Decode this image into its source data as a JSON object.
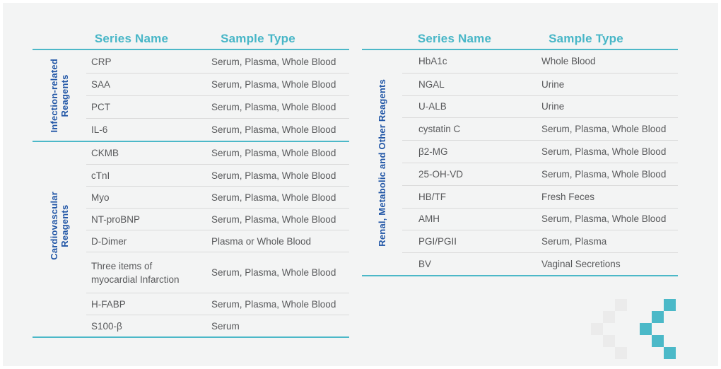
{
  "colors": {
    "accent_teal": "#47b6c7",
    "rule_teal": "#4cb8c8",
    "category_blue": "#2156a6",
    "body_text": "#58595b",
    "divider_gray": "#dadada",
    "panel_background": "#f3f4f4",
    "decor_gray": "#ebebeb",
    "decor_teal": "#4bb9c8"
  },
  "decoration": {
    "gray_chevron": "pixel-chevron-left-gray",
    "teal_chevron": "pixel-chevron-left-teal"
  },
  "tables": [
    {
      "headers": {
        "series": "Series Name",
        "sample": "Sample Type"
      },
      "sections": [
        {
          "category": "Infection-related\nReagents",
          "rows": [
            {
              "series": "CRP",
              "sample": "Serum, Plasma, Whole Blood"
            },
            {
              "series": "SAA",
              "sample": "Serum, Plasma, Whole Blood"
            },
            {
              "series": "PCT",
              "sample": "Serum, Plasma, Whole Blood"
            },
            {
              "series": "IL-6",
              "sample": "Serum, Plasma, Whole Blood"
            }
          ]
        },
        {
          "category": "Cardiovascular\nReagents",
          "rows": [
            {
              "series": "CKMB",
              "sample": "Serum, Plasma, Whole Blood"
            },
            {
              "series": "cTnI",
              "sample": "Serum, Plasma, Whole Blood"
            },
            {
              "series": "Myo",
              "sample": "Serum, Plasma, Whole Blood"
            },
            {
              "series": "NT-proBNP",
              "sample": "Serum, Plasma, Whole Blood"
            },
            {
              "series": "D-Dimer",
              "sample": "Plasma or Whole Blood"
            },
            {
              "series": "Three items of\nmyocardial Infarction",
              "sample": "Serum, Plasma, Whole Blood"
            },
            {
              "series": "H-FABP",
              "sample": "Serum, Plasma, Whole Blood"
            },
            {
              "series": "S100-β",
              "sample": "Serum"
            }
          ]
        }
      ]
    },
    {
      "headers": {
        "series": "Series Name",
        "sample": "Sample Type"
      },
      "sections": [
        {
          "category": "Renal, Metabolic and Other Reagents",
          "rows": [
            {
              "series": "HbA1c",
              "sample": "Whole Blood"
            },
            {
              "series": "NGAL",
              "sample": "Urine"
            },
            {
              "series": "U-ALB",
              "sample": "Urine"
            },
            {
              "series": "cystatin C",
              "sample": "Serum, Plasma, Whole Blood"
            },
            {
              "series": "β2-MG",
              "sample": "Serum, Plasma, Whole Blood"
            },
            {
              "series": "25-OH-VD",
              "sample": "Serum, Plasma, Whole Blood"
            },
            {
              "series": "HB/TF",
              "sample": "Fresh Feces"
            },
            {
              "series": "AMH",
              "sample": "Serum, Plasma, Whole Blood"
            },
            {
              "series": "PGI/PGII",
              "sample": "Serum, Plasma"
            },
            {
              "series": "BV",
              "sample": "Vaginal Secretions"
            }
          ]
        }
      ]
    }
  ]
}
